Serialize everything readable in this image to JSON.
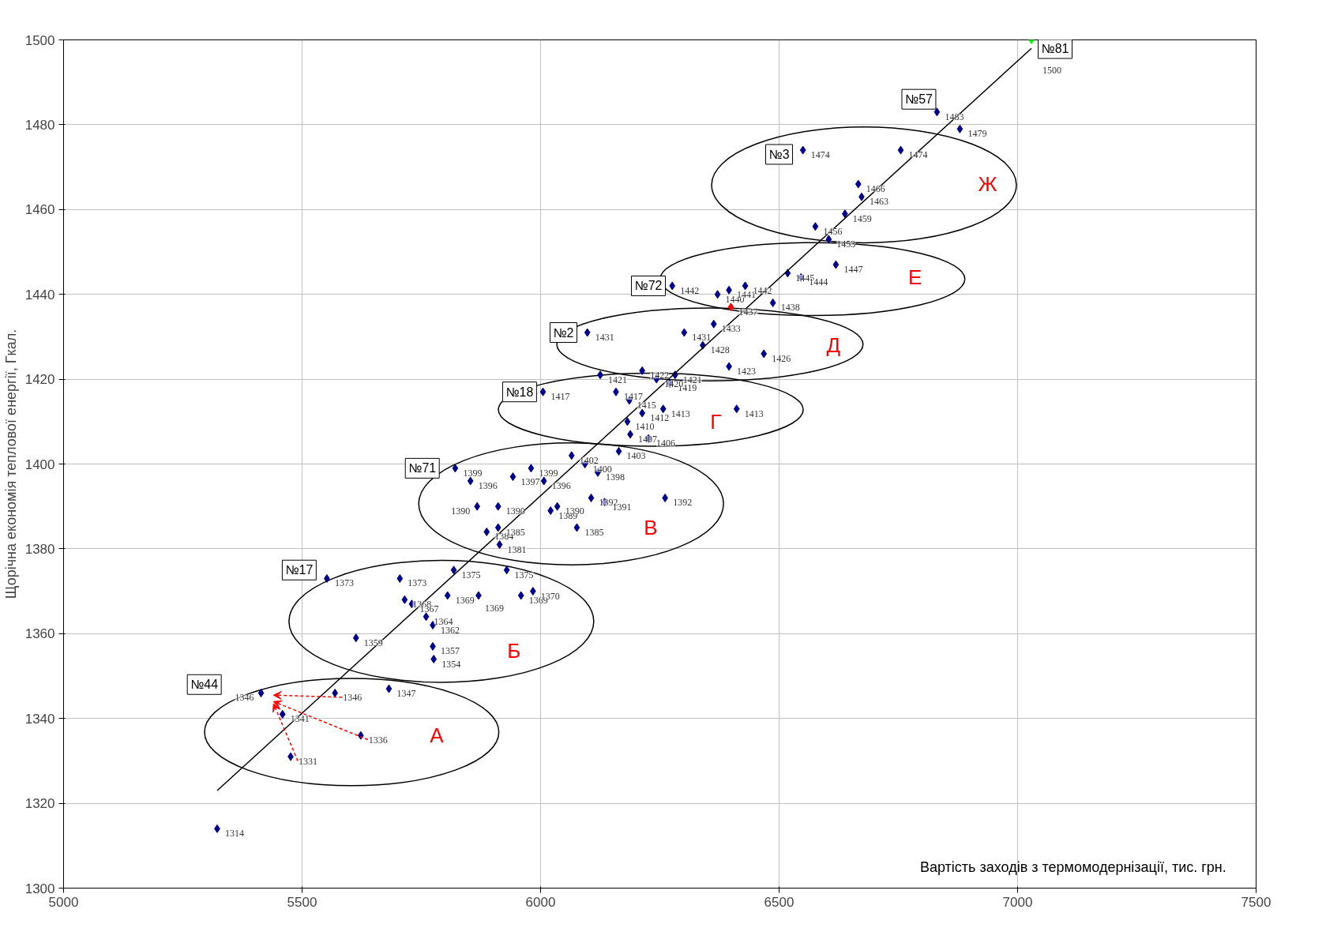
{
  "chart_data": {
    "type": "scatter",
    "xlabel": "Вартість заходів з термомодернізації, тис. грн.",
    "ylabel": "Щорічна економія теплової енергії, Гкал.",
    "xlim": [
      5000,
      7500
    ],
    "xticks": [
      5000,
      5500,
      6000,
      6500,
      7000,
      7500
    ],
    "ylim": [
      1300,
      1500
    ],
    "yticks": [
      1300,
      1320,
      1340,
      1360,
      1380,
      1400,
      1420,
      1440,
      1460,
      1480,
      1500
    ],
    "grid": true,
    "series": [
      {
        "marker": "diamond",
        "value_labels": [
          "1314",
          "1346",
          "1341",
          "1331",
          "1346",
          "1336",
          "1347",
          "1373",
          "1359",
          "1373",
          "1368",
          "1367",
          "1364",
          "1362",
          "1357",
          "1354",
          "1369",
          "1375",
          "1369",
          "1375",
          "1369",
          "1370",
          "1399",
          "1396",
          "1390",
          "1384",
          "1385",
          "1381",
          "1390",
          "1397",
          "1399",
          "1396",
          "1389",
          "1390",
          "1385",
          "1402",
          "1400",
          "1398",
          "1392",
          "1391",
          "1392",
          "1403",
          "1407",
          "1406",
          "1417",
          "1417",
          "1415",
          "1410",
          "1412",
          "1413",
          "1413",
          "1419",
          "1420",
          "1421",
          "1422",
          "1421",
          "1431",
          "1431",
          "1428",
          "1433",
          "1423",
          "1426",
          "1442",
          "1440",
          "1441",
          "1442",
          "1437",
          "1438",
          "1445",
          "1444",
          "1447",
          "1453",
          "1456",
          "1459",
          "1463",
          "1466",
          "1474",
          "1474",
          "1479",
          "1483",
          "1500"
        ],
        "x": [
          5322,
          5414,
          5459,
          5476,
          5569,
          5623,
          5682,
          5552,
          5613,
          5705,
          5715,
          5730,
          5760,
          5774,
          5774,
          5776,
          5805,
          5818,
          5870,
          5929,
          5959,
          5984,
          5821,
          5853,
          5867,
          5887,
          5911,
          5914,
          5911,
          5942,
          5980,
          6007,
          6021,
          6035,
          6076,
          6065,
          6093,
          6120,
          6106,
          6134,
          6261,
          6164,
          6188,
          6226,
          6005,
          6158,
          6186,
          6182,
          6213,
          6257,
          6411,
          6271,
          6243,
          6125,
          6213,
          6282,
          6098,
          6301,
          6340,
          6363,
          6395,
          6468,
          6276,
          6371,
          6395,
          6429,
          6399,
          6487,
          6518,
          6546,
          6619,
          6604,
          6576,
          6638,
          6673,
          6666,
          6550,
          6755,
          6879,
          6831,
          7029
        ],
        "values": [
          1314,
          1346,
          1341,
          1331,
          1346,
          1336,
          1347,
          1373,
          1359,
          1373,
          1368,
          1367,
          1364,
          1362,
          1357,
          1354,
          1369,
          1375,
          1369,
          1375,
          1369,
          1370,
          1399,
          1396,
          1390,
          1384,
          1385,
          1381,
          1390,
          1397,
          1399,
          1396,
          1389,
          1390,
          1385,
          1402,
          1400,
          1398,
          1392,
          1391,
          1392,
          1403,
          1407,
          1406,
          1417,
          1417,
          1415,
          1410,
          1412,
          1413,
          1413,
          1419,
          1420,
          1421,
          1422,
          1421,
          1431,
          1431,
          1428,
          1433,
          1423,
          1426,
          1442,
          1440,
          1441,
          1442,
          1437,
          1438,
          1445,
          1444,
          1447,
          1453,
          1456,
          1459,
          1463,
          1466,
          1474,
          1474,
          1479,
          1483,
          1500
        ],
        "colors": [
          "#00008b",
          "#00008b",
          "#00008b",
          "#00008b",
          "#00008b",
          "#00008b",
          "#00008b",
          "#00008b",
          "#00008b",
          "#00008b",
          "#00008b",
          "#00008b",
          "#00008b",
          "#00008b",
          "#00008b",
          "#00008b",
          "#00008b",
          "#00008b",
          "#00008b",
          "#00008b",
          "#00008b",
          "#00008b",
          "#00008b",
          "#00008b",
          "#00008b",
          "#00008b",
          "#00008b",
          "#00008b",
          "#00008b",
          "#00008b",
          "#00008b",
          "#00008b",
          "#00008b",
          "#00008b",
          "#00008b",
          "#00008b",
          "#00008b",
          "#00008b",
          "#00008b",
          "#00008b",
          "#00008b",
          "#00008b",
          "#00008b",
          "#00008b",
          "#00008b",
          "#00008b",
          "#00008b",
          "#00008b",
          "#00008b",
          "#00008b",
          "#00008b",
          "#00008b",
          "#00008b",
          "#00008b",
          "#00008b",
          "#00008b",
          "#00008b",
          "#00008b",
          "#00008b",
          "#00008b",
          "#00008b",
          "#00008b",
          "#00008b",
          "#00008b",
          "#00008b",
          "#00008b",
          "#ff0000",
          "#00008b",
          "#00008b",
          "#00008b",
          "#00008b",
          "#00008b",
          "#00008b",
          "#00008b",
          "#00008b",
          "#00008b",
          "#00008b",
          "#00008b",
          "#00008b",
          "#00008b",
          "#00ff00"
        ]
      },
      {
        "type": "line",
        "color": "#000000",
        "x": [
          5322,
          7029
        ],
        "values": [
          1323,
          1498
        ]
      }
    ],
    "annotations": [
      "А",
      "Б",
      "В",
      "Г",
      "Д",
      "Е",
      "Ж",
      {
        "text": "№44",
        "x": 5295,
        "y": 1348
      },
      {
        "text": "№17",
        "x": 5494,
        "y": 1375
      },
      {
        "text": "№71",
        "x": 5752,
        "y": 1399
      },
      {
        "text": "№18",
        "x": 5956,
        "y": 1417
      },
      {
        "text": "№2",
        "x": 6048,
        "y": 1431
      },
      {
        "text": "№72",
        "x": 6226,
        "y": 1442
      },
      {
        "text": "№3",
        "x": 6500,
        "y": 1473
      },
      {
        "text": "№57",
        "x": 6793,
        "y": 1486
      },
      {
        "text": "№81",
        "x": 7029,
        "y": 1500
      }
    ]
  }
}
